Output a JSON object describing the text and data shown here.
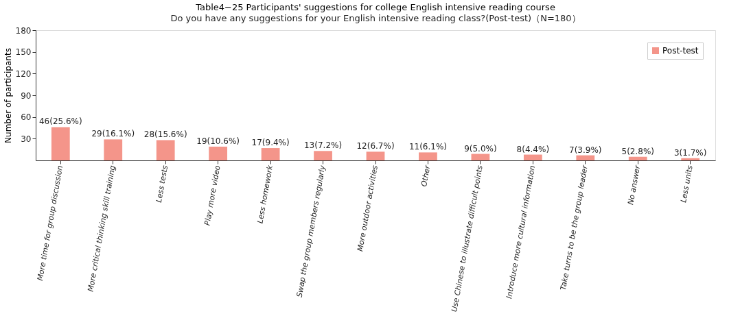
{
  "chart_data": {
    "type": "bar",
    "title": "Table4−25 Participants' suggestions for college English intensive reading course",
    "subtitle": "Do you have any suggestions for your English intensive reading class?(Post-test)（N=180）",
    "ylabel": "Number of participants",
    "categories": [
      "More time for group discussion",
      "More critical thinking skill training",
      "Less tests",
      "Play more video",
      "Less homework",
      "Swap the group members regularly",
      "More outdoor activities",
      "Other",
      "Use Chinese to illustrate difficult points",
      "Introduce more cultural information",
      "Take turns to be the group leader",
      "No answer",
      "Less units"
    ],
    "series": [
      {
        "name": "Post-test",
        "color": "#f4958a",
        "values": [
          46,
          29,
          28,
          19,
          17,
          13,
          12,
          11,
          9,
          8,
          7,
          5,
          3
        ],
        "value_labels": [
          "46(25.6%)",
          "29(16.1%)",
          "28(15.6%)",
          "19(10.6%)",
          "17(9.4%)",
          "13(7.2%)",
          "12(6.7%)",
          "11(6.1%)",
          "9(5.0%)",
          "8(4.4%)",
          "7(3.9%)",
          "5(2.8%)",
          "3(1.7%)"
        ]
      }
    ],
    "ylim": [
      0,
      180
    ],
    "yticks": [
      30,
      60,
      90,
      120,
      150,
      180
    ],
    "grid": false,
    "legend": "top right"
  }
}
